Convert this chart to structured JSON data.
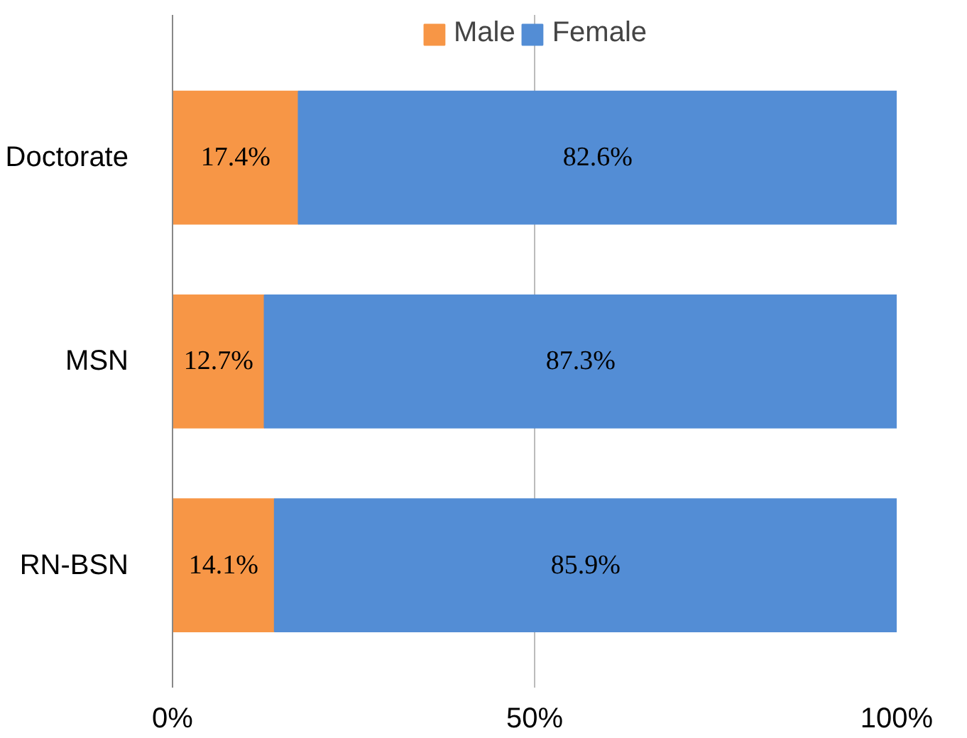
{
  "chart_data": {
    "type": "bar",
    "orientation": "horizontal",
    "stacked": true,
    "categories": [
      "Doctorate",
      "MSN",
      "RN-BSN"
    ],
    "series": [
      {
        "name": "Male",
        "color": "#f79646",
        "values": [
          17.4,
          12.7,
          14.1
        ],
        "value_labels": [
          "17.4%",
          "12.7%",
          "14.1%"
        ]
      },
      {
        "name": "Female",
        "color": "#538dd5",
        "values": [
          82.6,
          87.3,
          85.9
        ],
        "value_labels": [
          "82.6%",
          "87.3%",
          "85.9%"
        ]
      }
    ],
    "xlim": [
      0,
      100
    ],
    "xticks": [
      {
        "value": 0,
        "label": "0%"
      },
      {
        "value": 50,
        "label": "50%"
      },
      {
        "value": 100,
        "label": "100%"
      }
    ],
    "grid": "x",
    "legend": "top"
  }
}
